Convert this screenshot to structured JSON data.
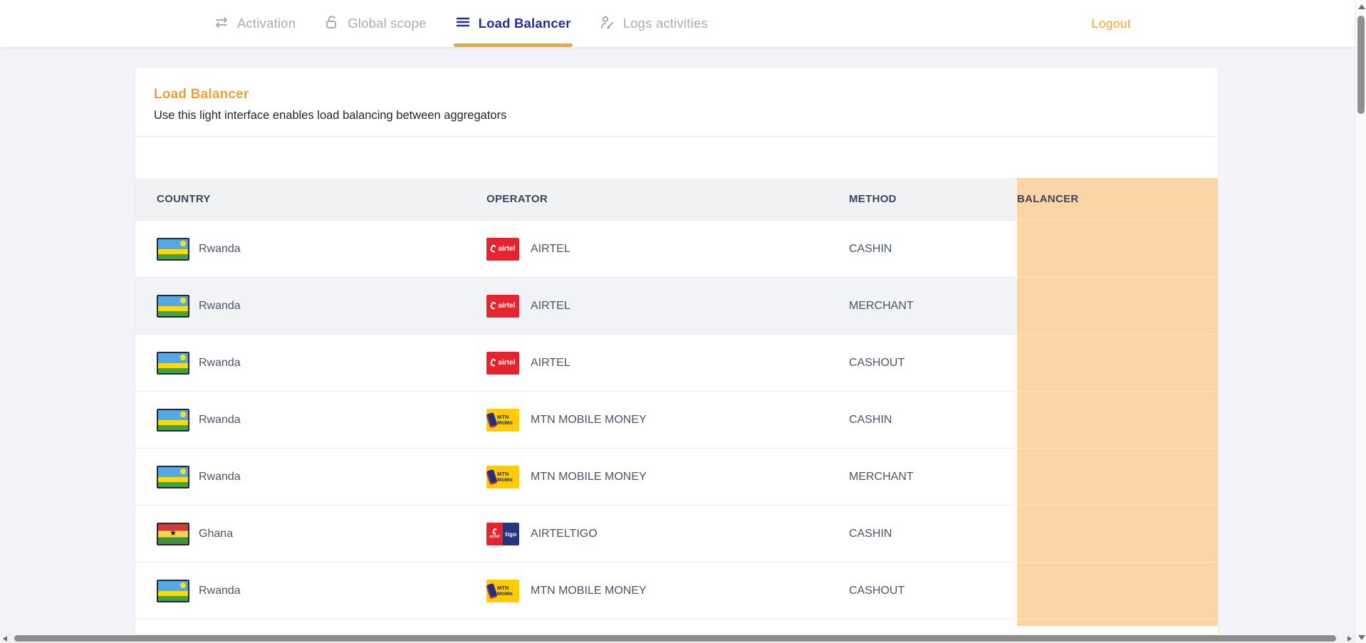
{
  "nav": {
    "tabs": [
      {
        "label": "Activation",
        "icon": "swap-arrows-icon",
        "active": false
      },
      {
        "label": "Global scope",
        "icon": "unlock-icon",
        "active": false
      },
      {
        "label": "Load Balancer",
        "icon": "list-lines-icon",
        "active": true
      },
      {
        "label": "Logs activities",
        "icon": "user-edit-icon",
        "active": false
      }
    ],
    "active_tab": "Load Balancer",
    "logout_label": "Logout"
  },
  "page": {
    "title": "Load Balancer",
    "subtitle": "Use this light interface enables load balancing between aggregators"
  },
  "table": {
    "columns": [
      "COUNTRY",
      "OPERATOR",
      "METHOD",
      "BALANCER"
    ],
    "rows": [
      {
        "country": "Rwanda",
        "flag": "rwanda",
        "operator": "AIRTEL",
        "logo": "airtel",
        "method": "CASHIN",
        "highlighted": false
      },
      {
        "country": "Rwanda",
        "flag": "rwanda",
        "operator": "AIRTEL",
        "logo": "airtel",
        "method": "MERCHANT",
        "highlighted": true
      },
      {
        "country": "Rwanda",
        "flag": "rwanda",
        "operator": "AIRTEL",
        "logo": "airtel",
        "method": "CASHOUT",
        "highlighted": false
      },
      {
        "country": "Rwanda",
        "flag": "rwanda",
        "operator": "MTN MOBILE MONEY",
        "logo": "mtn",
        "method": "CASHIN",
        "highlighted": false
      },
      {
        "country": "Rwanda",
        "flag": "rwanda",
        "operator": "MTN MOBILE MONEY",
        "logo": "mtn",
        "method": "MERCHANT",
        "highlighted": false
      },
      {
        "country": "Ghana",
        "flag": "ghana",
        "operator": "AIRTELTIGO",
        "logo": "airteltigo",
        "method": "CASHIN",
        "highlighted": false
      },
      {
        "country": "Rwanda",
        "flag": "rwanda",
        "operator": "MTN MOBILE MONEY",
        "logo": "mtn",
        "method": "CASHOUT",
        "highlighted": false
      }
    ]
  },
  "logos": {
    "airtel_text": "airtel",
    "tigo_text": "tigo",
    "mtn_line1": "MTN",
    "mtn_line2": "MoMo"
  },
  "colors": {
    "accent_orange": "#E9A53C",
    "active_tab_blue": "#232D9C",
    "inactive_tab_gray": "#A7ACB8",
    "balancer_column_bg": "#FBD5A5",
    "header_row_bg": "#F1F2F4",
    "highlight_row_bg": "#F2F3F6",
    "page_bg": "#F3F4F9",
    "airtel_red": "#E4252F",
    "mtn_yellow": "#FFCB05",
    "tigo_navy": "#27357E"
  }
}
